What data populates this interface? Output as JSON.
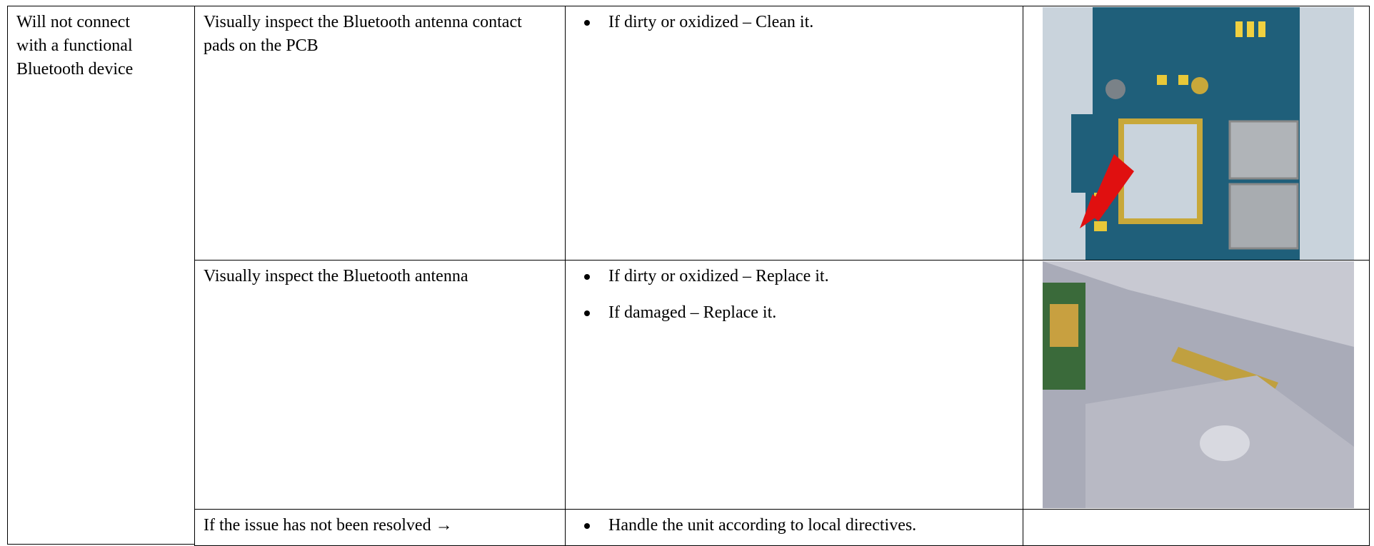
{
  "table": {
    "rows": [
      {
        "symptom": "Will not connect with a functional Bluetooth device",
        "steps": [
          {
            "action": "Visually inspect the Bluetooth antenna contact pads on the PCB",
            "results": [
              "If dirty or oxidized – Clean it."
            ]
          },
          {
            "action": "Visually inspect the Bluetooth antenna",
            "results": [
              "If dirty or oxidized – Replace it.",
              "If damaged – Replace it."
            ]
          },
          {
            "action": "If the issue has not been resolved →",
            "results": [
              "Handle the unit according to local directives."
            ]
          }
        ]
      }
    ]
  }
}
